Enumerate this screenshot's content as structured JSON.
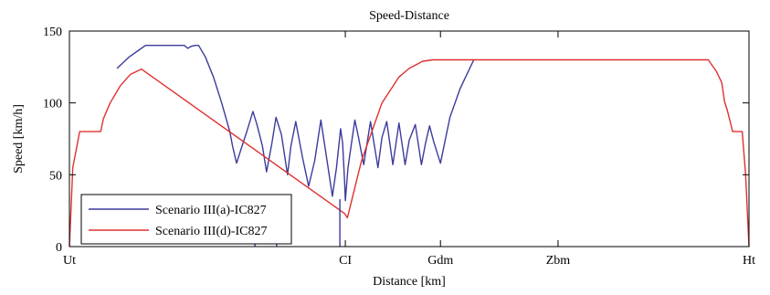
{
  "chart_data": {
    "type": "line",
    "title": "Speed-Distance",
    "xlabel": "Distance [km]",
    "ylabel": "Speed [km/h]",
    "xlim": [
      0,
      100
    ],
    "ylim": [
      0,
      150
    ],
    "xticks": [
      {
        "value": 0,
        "label": "Ut"
      },
      {
        "value": 40.6,
        "label": "CI"
      },
      {
        "value": 54.6,
        "label": "Gdm"
      },
      {
        "value": 71.9,
        "label": "Zbm"
      },
      {
        "value": 100,
        "label": "Ht"
      }
    ],
    "yticks": [
      0,
      50,
      100,
      150
    ],
    "grid": false,
    "legend_position": "bottom-left",
    "series": [
      {
        "name": "Scenario III(a)-IC827",
        "color": "#3b3b9c",
        "x": [
          7.0,
          8.8,
          10.0,
          11.2,
          12.1,
          13.5,
          15.1,
          16.9,
          17.4,
          18.0,
          18.6,
          19.0,
          20.0,
          21.2,
          22.4,
          23.6,
          24.0,
          24.6,
          25.4,
          26.1,
          27.0,
          27.6,
          28.4,
          29.0,
          29.8,
          30.4,
          31.2,
          32.1,
          32.6,
          33.3,
          34.3,
          35.2,
          36.1,
          37.0,
          37.9,
          38.7,
          39.3,
          39.9,
          40.2,
          40.5,
          40.6,
          41.0,
          41.6,
          42.0,
          42.5,
          43.3,
          44.3,
          45.4,
          46.0,
          46.7,
          47.6,
          48.5,
          49.4,
          50.0,
          50.9,
          51.8,
          52.4,
          53.0,
          53.6,
          54.6,
          56.0,
          57.5,
          59.5
        ],
        "y": [
          124,
          132,
          136,
          140,
          140,
          140,
          140,
          140,
          138,
          139.5,
          140,
          140,
          132,
          118,
          100,
          80,
          70,
          58,
          70,
          80,
          94,
          85,
          70,
          52,
          72,
          90,
          78,
          50,
          70,
          87,
          62,
          42,
          60,
          88,
          60,
          35,
          55,
          82,
          72,
          45,
          32,
          55,
          75,
          88,
          77,
          57,
          87,
          55,
          76,
          87,
          57,
          86,
          57,
          74,
          85,
          57,
          72,
          84,
          73,
          58,
          90,
          110,
          130
        ]
      },
      {
        "name": "Scenario III(d)-IC827",
        "color": "#e03030",
        "x": [
          0,
          0.5,
          1.5,
          3.0,
          4.6,
          5.0,
          6.0,
          7.5,
          9.0,
          10.6,
          40.5,
          40.9,
          43.0,
          46.0,
          48.5,
          50.0,
          52.0,
          53.5,
          54.6,
          60,
          65,
          70,
          75,
          80,
          85,
          90,
          94,
          95.2,
          96.0,
          96.4,
          96.8,
          97.6,
          98.3,
          99.0,
          99.5,
          100
        ],
        "y": [
          0,
          55,
          80,
          80,
          80,
          89,
          100,
          112,
          120,
          123.5,
          23,
          20,
          60,
          100,
          118,
          124,
          129,
          130,
          130,
          130,
          130,
          130,
          130,
          130,
          130,
          130,
          130,
          122,
          114,
          101,
          95,
          80,
          80,
          80,
          50,
          0
        ]
      },
      {
        "name": "",
        "color": "#3b3b9c",
        "x": [
          27.3,
          27.3,
          30.5,
          30.5,
          39.8,
          39.8
        ],
        "y": [
          35,
          0,
          35,
          0,
          33,
          0
        ]
      }
    ]
  }
}
